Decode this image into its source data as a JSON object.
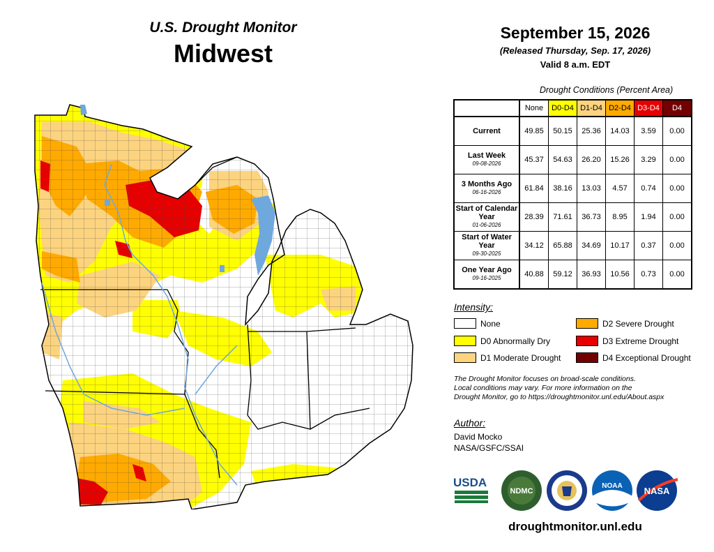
{
  "header": {
    "brand": "U.S. Drought Monitor",
    "region": "Midwest",
    "date": "September 15, 2026",
    "released": "(Released Thursday, Sep. 17, 2026)",
    "valid": "Valid 8 a.m. EDT"
  },
  "table": {
    "caption": "Drought Conditions (Percent Area)",
    "columns": [
      "None",
      "D0-D4",
      "D1-D4",
      "D2-D4",
      "D3-D4",
      "D4"
    ],
    "column_colors": [
      "#ffffff",
      "#ffff00",
      "#fcd37f",
      "#ffaa00",
      "#e60000",
      "#730000"
    ],
    "rows": [
      {
        "label": "Current",
        "date": "",
        "values": [
          "49.85",
          "50.15",
          "25.36",
          "14.03",
          "3.59",
          "0.00"
        ]
      },
      {
        "label": "Last Week",
        "date": "09-08-2026",
        "values": [
          "45.37",
          "54.63",
          "26.20",
          "15.26",
          "3.29",
          "0.00"
        ]
      },
      {
        "label": "3 Months Ago",
        "date": "06-16-2026",
        "values": [
          "61.84",
          "38.16",
          "13.03",
          "4.57",
          "0.74",
          "0.00"
        ]
      },
      {
        "label": "Start of Calendar Year",
        "date": "01-06-2026",
        "values": [
          "28.39",
          "71.61",
          "36.73",
          "8.95",
          "1.94",
          "0.00"
        ]
      },
      {
        "label": "Start of Water Year",
        "date": "09-30-2025",
        "values": [
          "34.12",
          "65.88",
          "34.69",
          "10.17",
          "0.37",
          "0.00"
        ]
      },
      {
        "label": "One Year Ago",
        "date": "09-16-2025",
        "values": [
          "40.88",
          "59.12",
          "36.93",
          "10.56",
          "0.73",
          "0.00"
        ]
      }
    ]
  },
  "legend": {
    "title": "Intensity:",
    "items": [
      {
        "label": "None",
        "color": "#ffffff"
      },
      {
        "label": "D0 Abnormally Dry",
        "color": "#ffff00"
      },
      {
        "label": "D1 Moderate Drought",
        "color": "#fcd37f"
      },
      {
        "label": "D2 Severe Drought",
        "color": "#ffaa00"
      },
      {
        "label": "D3 Extreme Drought",
        "color": "#e60000"
      },
      {
        "label": "D4 Exceptional Drought",
        "color": "#730000"
      }
    ]
  },
  "note": {
    "line1": "The Drought Monitor focuses on broad-scale conditions.",
    "line2": "Local conditions may vary. For more information on the",
    "line3": "Drought Monitor, go to https://droughtmonitor.unl.edu/About.aspx"
  },
  "author": {
    "title": "Author:",
    "name": "David Mocko",
    "org": "NASA/GSFC/SSAI"
  },
  "logos": {
    "usda": "USDA",
    "ndmc": "NDMC",
    "noaa": "NOAA",
    "nasa": "NASA"
  },
  "website": "droughtmonitor.unl.edu",
  "colors": {
    "none": "#ffffff",
    "d0": "#ffff00",
    "d1": "#fcd37f",
    "d2": "#ffaa00",
    "d3": "#e60000",
    "d4": "#730000",
    "water": "#6fa8dc"
  }
}
